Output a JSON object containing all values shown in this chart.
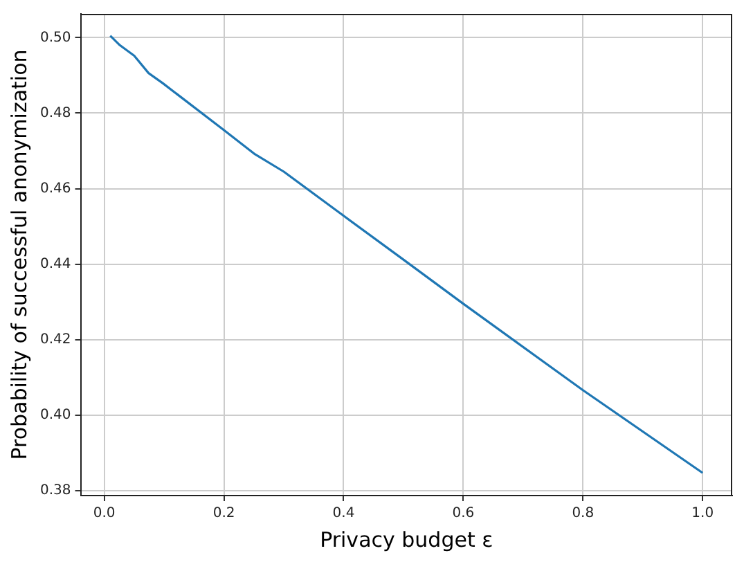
{
  "chart_data": {
    "type": "line",
    "xlabel": "Privacy budget ε",
    "ylabel": "Probability of successful anonymization",
    "x": [
      0.01,
      0.026,
      0.05,
      0.074,
      0.098,
      0.2,
      0.252,
      0.3,
      0.4,
      0.5,
      0.6,
      0.8,
      1.0
    ],
    "series": [
      {
        "color": "#1f77b4",
        "values": [
          0.5005,
          0.498,
          0.4952,
          0.4906,
          0.4879,
          0.4755,
          0.4691,
          0.4645,
          0.4528,
          0.4412,
          0.4295,
          0.4066,
          0.3847
        ]
      }
    ],
    "xlim": [
      -0.0395,
      1.0495
    ],
    "ylim": [
      0.3787,
      0.5063
    ],
    "xticks": [
      {
        "value": 0,
        "label": "0.0"
      },
      0.2,
      0.4,
      0.6,
      0.8,
      {
        "value": 1,
        "label": "1.0"
      }
    ],
    "yticks": [
      0.38,
      {
        "value": 0.4,
        "label": "0.40"
      },
      0.42,
      0.44,
      0.46,
      0.48,
      {
        "value": 0.5,
        "label": "0.50"
      }
    ],
    "grid": true,
    "marker": "none",
    "line_style": "solid",
    "legend": false
  }
}
